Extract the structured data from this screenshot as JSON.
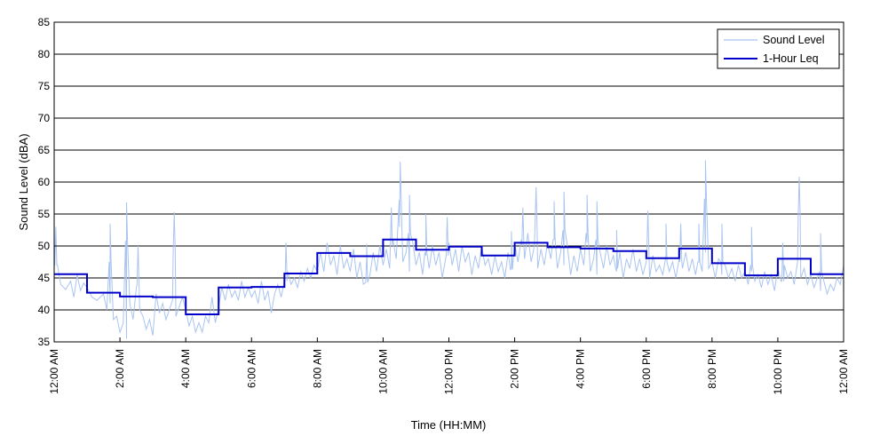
{
  "chart_data": {
    "type": "line",
    "xlabel": "Time (HH:MM)",
    "ylabel": "Sound Level (dBA)",
    "ylim": [
      35,
      85
    ],
    "xlim_hours": [
      0,
      24
    ],
    "grid": "horizontal",
    "legend_position": "top-right",
    "y_ticks": [
      "35",
      "40",
      "45",
      "50",
      "55",
      "60",
      "65",
      "70",
      "75",
      "80",
      "85"
    ],
    "x_ticks": [
      "12:00 AM",
      "2:00 AM",
      "4:00 AM",
      "6:00 AM",
      "8:00 AM",
      "10:00 AM",
      "12:00 PM",
      "2:00 PM",
      "4:00 PM",
      "6:00 PM",
      "8:00 PM",
      "10:00 PM",
      "12:00 AM"
    ],
    "series": [
      {
        "name": "Sound Level",
        "color": "#a9c4f0",
        "points": [
          [
            0.0,
            52.8
          ],
          [
            0.1,
            47.0
          ],
          [
            0.2,
            44.0
          ],
          [
            0.35,
            43.2
          ],
          [
            0.5,
            44.5
          ],
          [
            0.6,
            42.0
          ],
          [
            0.7,
            45.5
          ],
          [
            0.8,
            43.0
          ],
          [
            0.9,
            44.2
          ],
          [
            1.0,
            43.5
          ],
          [
            1.15,
            42.0
          ],
          [
            1.3,
            41.5
          ],
          [
            1.5,
            42.5
          ],
          [
            1.6,
            40.0
          ],
          [
            1.7,
            41.0
          ],
          [
            1.8,
            38.5
          ],
          [
            1.9,
            39.0
          ],
          [
            2.0,
            36.5
          ],
          [
            2.1,
            38.0
          ],
          [
            2.2,
            35.5
          ],
          [
            2.3,
            41.0
          ],
          [
            2.4,
            38.5
          ],
          [
            2.5,
            43.5
          ],
          [
            2.6,
            40.0
          ],
          [
            2.7,
            39.0
          ],
          [
            2.8,
            37.0
          ],
          [
            2.9,
            38.5
          ],
          [
            3.0,
            36.0
          ],
          [
            3.1,
            42.5
          ],
          [
            3.2,
            39.5
          ],
          [
            3.3,
            41.0
          ],
          [
            3.4,
            38.5
          ],
          [
            3.5,
            40.0
          ],
          [
            3.6,
            41.5
          ],
          [
            3.7,
            39.0
          ],
          [
            3.8,
            40.5
          ],
          [
            3.9,
            42.0
          ],
          [
            4.0,
            40.0
          ],
          [
            4.1,
            37.5
          ],
          [
            4.2,
            39.0
          ],
          [
            4.3,
            36.5
          ],
          [
            4.4,
            38.0
          ],
          [
            4.5,
            36.5
          ],
          [
            4.6,
            39.0
          ],
          [
            4.7,
            38.0
          ],
          [
            4.8,
            42.0
          ],
          [
            4.9,
            38.0
          ],
          [
            5.0,
            40.5
          ],
          [
            5.1,
            43.5
          ],
          [
            5.2,
            41.5
          ],
          [
            5.3,
            44.0
          ],
          [
            5.4,
            42.0
          ],
          [
            5.5,
            43.0
          ],
          [
            5.6,
            41.5
          ],
          [
            5.7,
            44.5
          ],
          [
            5.8,
            42.0
          ],
          [
            5.9,
            43.5
          ],
          [
            6.0,
            42.0
          ],
          [
            6.1,
            43.0
          ],
          [
            6.2,
            41.0
          ],
          [
            6.3,
            44.5
          ],
          [
            6.4,
            41.5
          ],
          [
            6.5,
            43.0
          ],
          [
            6.6,
            39.5
          ],
          [
            6.7,
            42.5
          ],
          [
            6.8,
            44.0
          ],
          [
            6.9,
            42.0
          ],
          [
            7.0,
            44.5
          ],
          [
            7.1,
            46.0
          ],
          [
            7.2,
            44.0
          ],
          [
            7.3,
            45.0
          ],
          [
            7.4,
            43.5
          ],
          [
            7.5,
            46.0
          ],
          [
            7.6,
            44.5
          ],
          [
            7.7,
            46.5
          ],
          [
            7.8,
            45.0
          ],
          [
            7.9,
            47.0
          ],
          [
            8.0,
            46.0
          ],
          [
            8.1,
            49.0
          ],
          [
            8.2,
            46.0
          ],
          [
            8.3,
            50.5
          ],
          [
            8.4,
            47.0
          ],
          [
            8.5,
            48.5
          ],
          [
            8.6,
            45.5
          ],
          [
            8.7,
            50.0
          ],
          [
            8.8,
            46.5
          ],
          [
            8.9,
            48.0
          ],
          [
            9.0,
            46.0
          ],
          [
            9.1,
            49.5
          ],
          [
            9.2,
            45.0
          ],
          [
            9.3,
            47.5
          ],
          [
            9.4,
            44.0
          ],
          [
            9.5,
            48.0
          ],
          [
            9.6,
            45.5
          ],
          [
            9.7,
            49.0
          ],
          [
            9.8,
            46.0
          ],
          [
            9.9,
            50.0
          ],
          [
            10.0,
            47.0
          ],
          [
            10.1,
            49.5
          ],
          [
            10.2,
            46.5
          ],
          [
            10.3,
            51.0
          ],
          [
            10.4,
            48.0
          ],
          [
            10.5,
            53.0
          ],
          [
            10.6,
            47.5
          ],
          [
            10.7,
            49.0
          ],
          [
            10.8,
            46.0
          ],
          [
            10.9,
            50.5
          ],
          [
            11.0,
            47.0
          ],
          [
            11.1,
            49.0
          ],
          [
            11.2,
            45.5
          ],
          [
            11.3,
            48.5
          ],
          [
            11.4,
            46.5
          ],
          [
            11.5,
            50.0
          ],
          [
            11.6,
            47.0
          ],
          [
            11.7,
            49.0
          ],
          [
            11.8,
            45.0
          ],
          [
            11.9,
            48.0
          ],
          [
            12.0,
            50.5
          ],
          [
            12.1,
            47.0
          ],
          [
            12.2,
            49.5
          ],
          [
            12.3,
            46.0
          ],
          [
            12.4,
            50.0
          ],
          [
            12.5,
            47.5
          ],
          [
            12.6,
            49.0
          ],
          [
            12.7,
            45.5
          ],
          [
            12.8,
            48.5
          ],
          [
            12.9,
            46.5
          ],
          [
            13.0,
            50.0
          ],
          [
            13.1,
            47.0
          ],
          [
            13.2,
            48.0
          ],
          [
            13.3,
            45.5
          ],
          [
            13.4,
            48.5
          ],
          [
            13.5,
            46.0
          ],
          [
            13.6,
            47.5
          ],
          [
            13.7,
            45.0
          ],
          [
            13.8,
            49.0
          ],
          [
            13.9,
            46.5
          ],
          [
            14.0,
            50.5
          ],
          [
            14.1,
            47.5
          ],
          [
            14.2,
            51.0
          ],
          [
            14.3,
            48.0
          ],
          [
            14.4,
            52.0
          ],
          [
            14.5,
            47.5
          ],
          [
            14.6,
            50.0
          ],
          [
            14.7,
            46.5
          ],
          [
            14.8,
            49.5
          ],
          [
            14.9,
            47.0
          ],
          [
            15.0,
            50.5
          ],
          [
            15.1,
            48.0
          ],
          [
            15.2,
            51.0
          ],
          [
            15.3,
            46.5
          ],
          [
            15.4,
            49.0
          ],
          [
            15.5,
            47.0
          ],
          [
            15.6,
            50.0
          ],
          [
            15.7,
            45.5
          ],
          [
            15.8,
            48.5
          ],
          [
            15.9,
            46.0
          ],
          [
            16.0,
            49.5
          ],
          [
            16.1,
            47.0
          ],
          [
            16.2,
            50.5
          ],
          [
            16.3,
            46.0
          ],
          [
            16.4,
            48.0
          ],
          [
            16.5,
            45.5
          ],
          [
            16.6,
            49.0
          ],
          [
            16.7,
            46.5
          ],
          [
            16.8,
            50.0
          ],
          [
            16.9,
            47.0
          ],
          [
            17.0,
            48.5
          ],
          [
            17.1,
            46.0
          ],
          [
            17.2,
            49.0
          ],
          [
            17.3,
            45.0
          ],
          [
            17.4,
            48.0
          ],
          [
            17.5,
            46.5
          ],
          [
            17.6,
            49.5
          ],
          [
            17.7,
            46.0
          ],
          [
            17.8,
            48.0
          ],
          [
            17.9,
            45.5
          ],
          [
            18.0,
            47.5
          ],
          [
            18.1,
            45.0
          ],
          [
            18.2,
            48.5
          ],
          [
            18.3,
            46.0
          ],
          [
            18.4,
            47.0
          ],
          [
            18.5,
            45.5
          ],
          [
            18.6,
            48.5
          ],
          [
            18.7,
            46.0
          ],
          [
            18.8,
            47.5
          ],
          [
            18.9,
            45.0
          ],
          [
            19.0,
            48.0
          ],
          [
            19.1,
            46.5
          ],
          [
            19.2,
            49.0
          ],
          [
            19.3,
            46.0
          ],
          [
            19.4,
            48.0
          ],
          [
            19.5,
            45.5
          ],
          [
            19.6,
            47.5
          ],
          [
            19.7,
            46.0
          ],
          [
            19.8,
            49.0
          ],
          [
            19.9,
            46.5
          ],
          [
            20.0,
            47.5
          ],
          [
            20.1,
            45.0
          ],
          [
            20.2,
            48.0
          ],
          [
            20.3,
            45.5
          ],
          [
            20.4,
            47.0
          ],
          [
            20.5,
            45.0
          ],
          [
            20.6,
            46.5
          ],
          [
            20.7,
            44.5
          ],
          [
            20.8,
            47.0
          ],
          [
            20.9,
            45.0
          ],
          [
            21.0,
            46.0
          ],
          [
            21.1,
            44.0
          ],
          [
            21.2,
            46.0
          ],
          [
            21.3,
            44.5
          ],
          [
            21.4,
            45.5
          ],
          [
            21.5,
            43.5
          ],
          [
            21.6,
            46.0
          ],
          [
            21.7,
            44.0
          ],
          [
            21.8,
            45.5
          ],
          [
            21.9,
            43.0
          ],
          [
            22.0,
            46.5
          ],
          [
            22.1,
            44.5
          ],
          [
            22.2,
            47.0
          ],
          [
            22.3,
            45.0
          ],
          [
            22.4,
            46.0
          ],
          [
            22.5,
            44.0
          ],
          [
            22.6,
            47.5
          ],
          [
            22.7,
            45.0
          ],
          [
            22.8,
            46.5
          ],
          [
            22.9,
            44.0
          ],
          [
            23.0,
            45.5
          ],
          [
            23.1,
            43.5
          ],
          [
            23.2,
            45.0
          ],
          [
            23.3,
            43.0
          ],
          [
            23.4,
            44.5
          ],
          [
            23.5,
            42.5
          ],
          [
            23.6,
            44.0
          ],
          [
            23.7,
            43.0
          ],
          [
            23.8,
            45.0
          ],
          [
            23.9,
            44.0
          ],
          [
            24.0,
            47.0
          ]
        ],
        "spikes": [
          [
            0.05,
            53.0
          ],
          [
            1.7,
            53.5
          ],
          [
            2.2,
            56.8
          ],
          [
            2.55,
            50.0
          ],
          [
            3.65,
            55.3
          ],
          [
            7.05,
            50.5
          ],
          [
            9.5,
            50.3
          ],
          [
            10.25,
            56.0
          ],
          [
            10.52,
            63.2
          ],
          [
            10.8,
            58.0
          ],
          [
            11.3,
            55.0
          ],
          [
            11.95,
            54.5
          ],
          [
            13.9,
            52.3
          ],
          [
            14.25,
            56.0
          ],
          [
            14.65,
            59.2
          ],
          [
            15.2,
            57.0
          ],
          [
            15.5,
            58.5
          ],
          [
            16.2,
            58.0
          ],
          [
            16.5,
            57.0
          ],
          [
            17.1,
            52.5
          ],
          [
            18.05,
            55.5
          ],
          [
            18.6,
            53.5
          ],
          [
            19.05,
            53.5
          ],
          [
            19.6,
            53.5
          ],
          [
            19.8,
            63.4
          ],
          [
            20.3,
            53.5
          ],
          [
            21.2,
            53.0
          ],
          [
            22.15,
            50.5
          ],
          [
            22.65,
            60.8
          ],
          [
            23.3,
            52.0
          ]
        ]
      },
      {
        "name": "1-Hour Leq",
        "color": "#0000c8",
        "step_values": [
          45.6,
          42.7,
          42.1,
          42.0,
          39.3,
          43.5,
          43.6,
          45.7,
          48.9,
          48.4,
          51.0,
          49.4,
          49.9,
          48.5,
          50.5,
          49.8,
          49.6,
          49.2,
          48.1,
          49.6,
          47.3,
          45.4,
          48.0,
          45.6
        ]
      }
    ]
  }
}
